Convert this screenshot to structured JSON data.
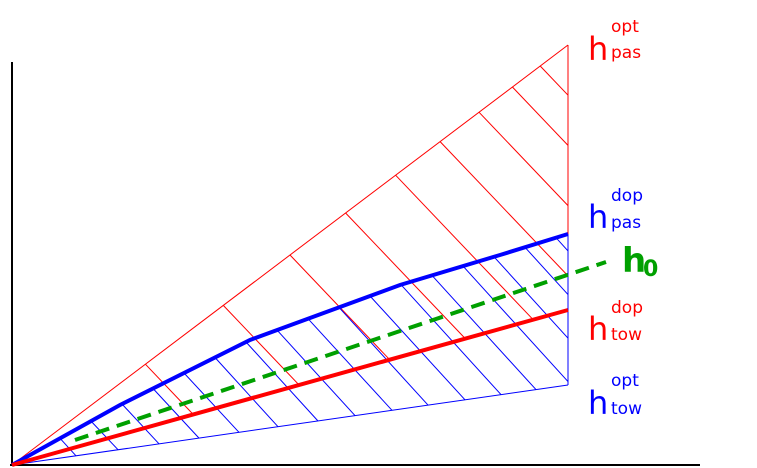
{
  "colors": {
    "background": "#ffffff",
    "axis": "#000000",
    "red": "#ff0000",
    "blue": "#0000ff",
    "green": "#00a000"
  },
  "labels": {
    "h_opt_pas": {
      "base": "h",
      "sup": "opt",
      "sub": "pas",
      "color": "#ff0000"
    },
    "h_dop_pas": {
      "base": "h",
      "sup": "dop",
      "sub": "pas",
      "color": "#0000ff"
    },
    "h_0": {
      "base": "h",
      "sub": "0",
      "color": "#00a000"
    },
    "h_dop_tow": {
      "base": "h",
      "sup": "dop",
      "sub": "tow",
      "color": "#ff0000"
    },
    "h_opt_tow": {
      "base": "h",
      "sup": "opt",
      "sub": "tow",
      "color": "#0000ff"
    }
  }
}
